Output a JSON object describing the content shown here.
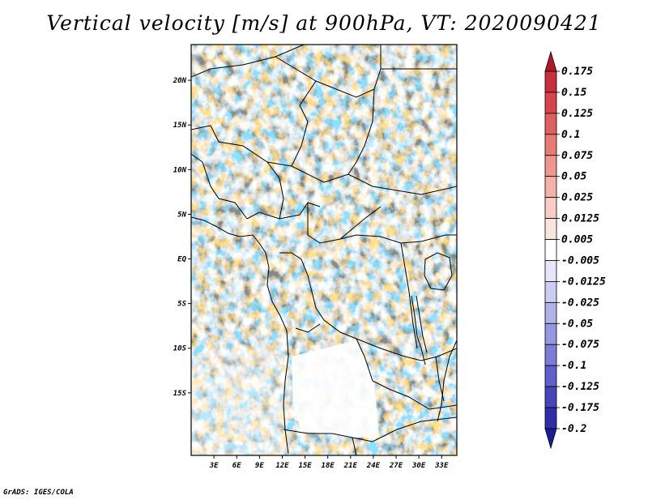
{
  "title": "Vertical velocity [m/s] at 900hPa, VT: 2020090421",
  "credit": "GrADS: IGES/COLA",
  "map": {
    "lon_range": [
      0,
      35
    ],
    "lat_range": [
      -22,
      24
    ],
    "lat_ticks": [
      {
        "value": 20,
        "label": "20N"
      },
      {
        "value": 15,
        "label": "15N"
      },
      {
        "value": 10,
        "label": "10N"
      },
      {
        "value": 5,
        "label": "5N"
      },
      {
        "value": 0,
        "label": "EQ"
      },
      {
        "value": -5,
        "label": "5S"
      },
      {
        "value": -10,
        "label": "10S"
      },
      {
        "value": -15,
        "label": "15S"
      }
    ],
    "lon_ticks": [
      {
        "value": 3,
        "label": "3E"
      },
      {
        "value": 6,
        "label": "6E"
      },
      {
        "value": 9,
        "label": "9E"
      },
      {
        "value": 12,
        "label": "12E"
      },
      {
        "value": 15,
        "label": "15E"
      },
      {
        "value": 18,
        "label": "18E"
      },
      {
        "value": 21,
        "label": "21E"
      },
      {
        "value": 24,
        "label": "24E"
      },
      {
        "value": 27,
        "label": "27E"
      },
      {
        "value": 30,
        "label": "30E"
      },
      {
        "value": 33,
        "label": "33E"
      }
    ]
  },
  "colorbar": {
    "labels": [
      "0.175",
      "0.15",
      "0.125",
      "0.1",
      "0.075",
      "0.05",
      "0.025",
      "0.0125",
      "0.005",
      "-0.005",
      "-0.0125",
      "-0.025",
      "-0.05",
      "-0.075",
      "-0.1",
      "-0.125",
      "-0.175",
      "-0.2"
    ],
    "colors": [
      "#b2182b",
      "#c62f3b",
      "#d6454b",
      "#e0605f",
      "#e87b76",
      "#ef978f",
      "#f4b2aa",
      "#f8cdc6",
      "#fbe5e1",
      "#ffffff",
      "#e6e6f8",
      "#cccdf2",
      "#b0b2ea",
      "#9597e0",
      "#7b7dd6",
      "#5f61ca",
      "#4446bb",
      "#2d2ea8",
      "#1c1c95"
    ]
  }
}
